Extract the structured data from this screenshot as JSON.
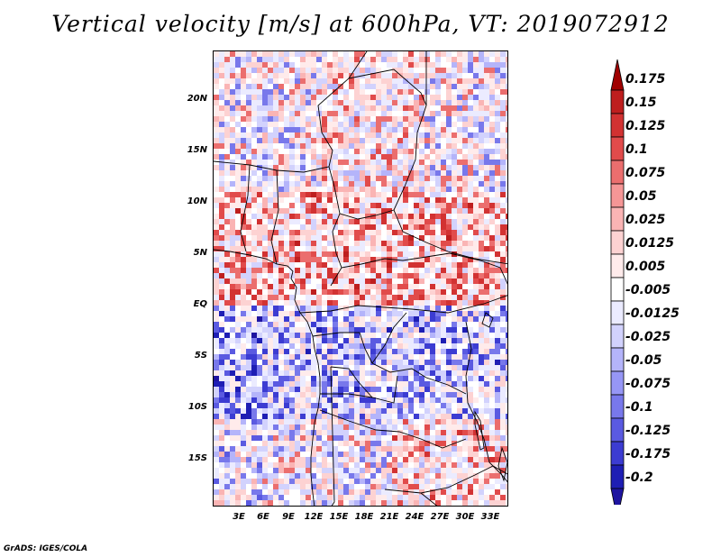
{
  "title": "Vertical velocity [m/s] at 600hPa, VT: 2019072912",
  "footer": "GrADS: IGES/COLA",
  "map": {
    "projection": "lat-lon",
    "lon_range": [
      0,
      35
    ],
    "lat_range": [
      -20,
      24.5
    ],
    "lat_ticks": [
      {
        "value": 20,
        "label": "20N"
      },
      {
        "value": 15,
        "label": "15N"
      },
      {
        "value": 10,
        "label": "10N"
      },
      {
        "value": 5,
        "label": "5N"
      },
      {
        "value": 0,
        "label": "EQ"
      },
      {
        "value": -5,
        "label": "5S"
      },
      {
        "value": -10,
        "label": "10S"
      },
      {
        "value": -15,
        "label": "15S"
      }
    ],
    "lon_ticks": [
      {
        "value": 3,
        "label": "3E"
      },
      {
        "value": 6,
        "label": "6E"
      },
      {
        "value": 9,
        "label": "9E"
      },
      {
        "value": 12,
        "label": "12E"
      },
      {
        "value": 15,
        "label": "15E"
      },
      {
        "value": 18,
        "label": "18E"
      },
      {
        "value": 21,
        "label": "21E"
      },
      {
        "value": 24,
        "label": "24E"
      },
      {
        "value": 27,
        "label": "27E"
      },
      {
        "value": 30,
        "label": "30E"
      },
      {
        "value": 33,
        "label": "33E"
      }
    ]
  },
  "colorbar": {
    "levels": [
      "0.175",
      "0.15",
      "0.125",
      "0.1",
      "0.075",
      "0.05",
      "0.025",
      "0.0125",
      "0.005",
      "-0.005",
      "-0.0125",
      "-0.025",
      "-0.05",
      "-0.075",
      "-0.1",
      "-0.125",
      "-0.175",
      "-0.2"
    ],
    "colors": [
      "#a00000",
      "#be1e1e",
      "#d23232",
      "#e14b4b",
      "#eb6e6e",
      "#f59696",
      "#fab4b4",
      "#fdd2d2",
      "#ffebeb",
      "#ffffff",
      "#ebebff",
      "#d2d2fd",
      "#b4b4fa",
      "#9696f5",
      "#7878eb",
      "#5a5ae1",
      "#3c3cd2",
      "#1e1eb4",
      "#1e14a0"
    ]
  }
}
